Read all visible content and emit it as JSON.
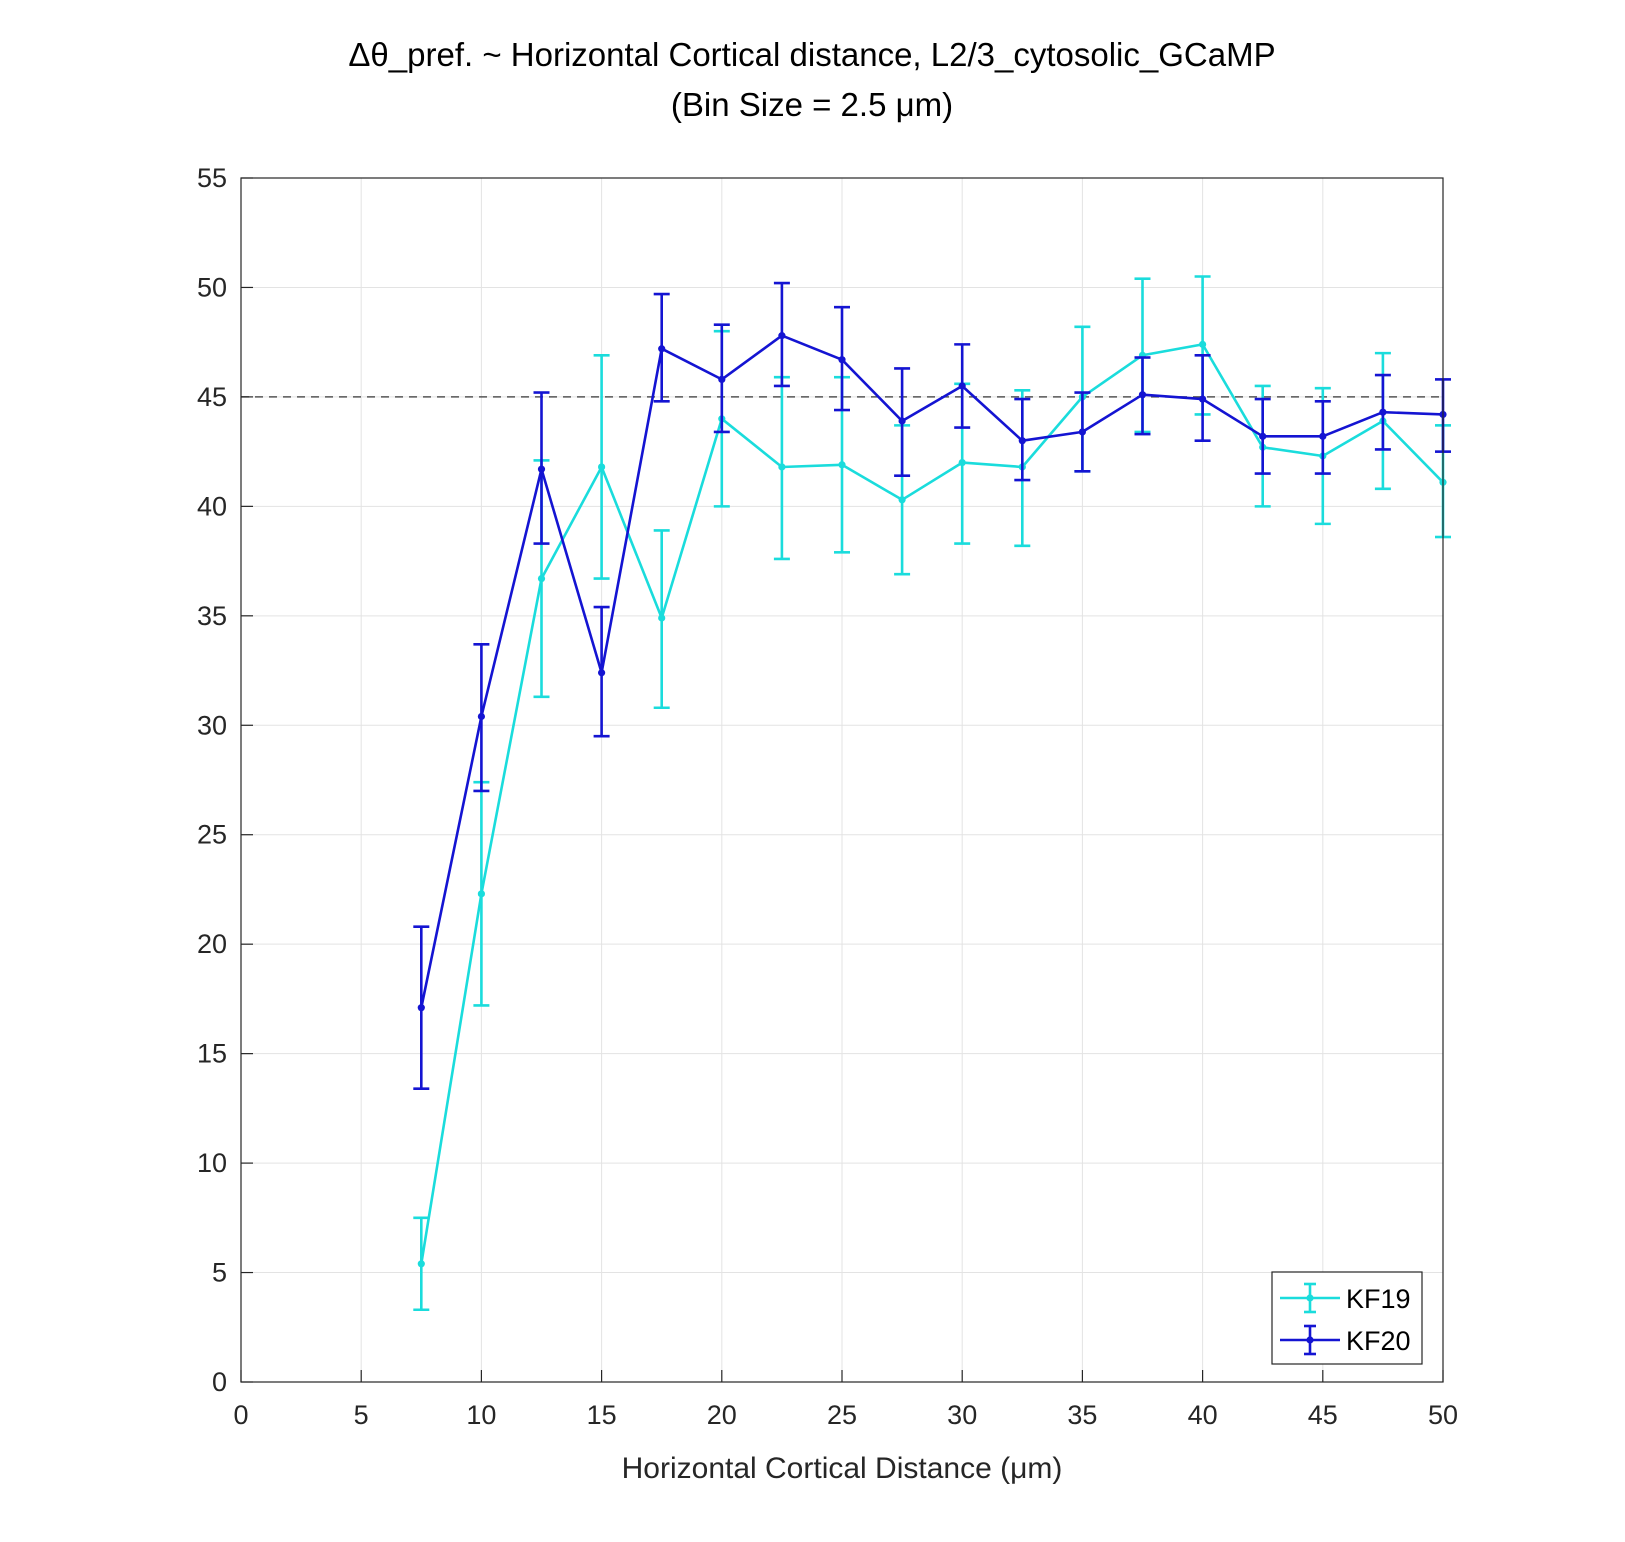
{
  "chart_data": {
    "type": "line",
    "title": "Δθ_pref. ~ Horizontal Cortical distance, L2/3_cytosolic_GCaMP",
    "subtitle": "(Bin Size = 2.5 μm)",
    "xlabel": "Horizontal Cortical Distance (μm)",
    "ylabel": "",
    "xlim": [
      0,
      50
    ],
    "ylim": [
      0,
      55
    ],
    "xticks": [
      0,
      5,
      10,
      15,
      20,
      25,
      30,
      35,
      40,
      45,
      50
    ],
    "yticks": [
      0,
      5,
      10,
      15,
      20,
      25,
      30,
      35,
      40,
      45,
      50,
      55
    ],
    "grid": true,
    "legend_position": "bottom-right",
    "reference_line": {
      "y": 45,
      "style": "dashed",
      "color": "#555555"
    },
    "x": [
      7.5,
      10,
      12.5,
      15,
      17.5,
      20,
      22.5,
      25,
      27.5,
      30,
      32.5,
      35,
      37.5,
      40,
      42.5,
      45,
      47.5,
      50
    ],
    "series": [
      {
        "name": "KF19",
        "color": "#1adcdc",
        "values": [
          5.4,
          22.3,
          36.7,
          41.8,
          34.9,
          44.0,
          41.8,
          41.9,
          40.3,
          42.0,
          41.8,
          45.0,
          46.9,
          47.4,
          42.7,
          42.3,
          43.9,
          41.1
        ],
        "lower": [
          3.3,
          17.2,
          31.3,
          36.7,
          30.8,
          40.0,
          37.6,
          37.9,
          36.9,
          38.3,
          38.2,
          41.6,
          43.4,
          44.2,
          40.0,
          39.2,
          40.8,
          38.6
        ],
        "upper": [
          7.5,
          27.4,
          42.1,
          46.9,
          38.9,
          48.0,
          45.9,
          45.9,
          43.7,
          45.6,
          45.3,
          48.2,
          50.4,
          50.5,
          45.5,
          45.4,
          47.0,
          43.7
        ]
      },
      {
        "name": "KF20",
        "color": "#1414d2",
        "values": [
          17.1,
          30.4,
          41.7,
          32.4,
          47.2,
          45.8,
          47.8,
          46.7,
          43.9,
          45.5,
          43.0,
          43.4,
          45.1,
          44.9,
          43.2,
          43.2,
          44.3,
          44.2
        ],
        "lower": [
          13.4,
          27.0,
          38.3,
          29.5,
          44.8,
          43.4,
          45.5,
          44.4,
          41.4,
          43.6,
          41.2,
          41.6,
          43.3,
          43.0,
          41.5,
          41.5,
          42.6,
          42.5
        ],
        "upper": [
          20.8,
          33.7,
          45.2,
          35.4,
          49.7,
          48.3,
          50.2,
          49.1,
          46.3,
          47.4,
          44.9,
          45.2,
          46.8,
          46.9,
          44.9,
          44.8,
          46.0,
          45.8
        ]
      }
    ]
  }
}
